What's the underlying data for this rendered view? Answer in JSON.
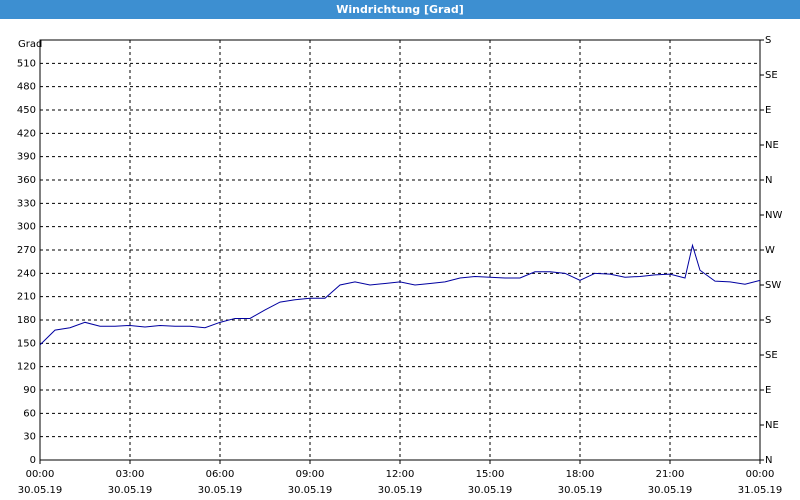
{
  "window_title": "Windrichtung [Grad]",
  "chart_data": {
    "type": "line",
    "y_label": "Grad",
    "x": [
      "2019-05-30 00:00",
      "2019-05-30 00:30",
      "2019-05-30 01:00",
      "2019-05-30 01:30",
      "2019-05-30 02:00",
      "2019-05-30 02:30",
      "2019-05-30 03:00",
      "2019-05-30 03:30",
      "2019-05-30 04:00",
      "2019-05-30 04:30",
      "2019-05-30 05:00",
      "2019-05-30 05:30",
      "2019-05-30 06:00",
      "2019-05-30 06:30",
      "2019-05-30 07:00",
      "2019-05-30 07:30",
      "2019-05-30 08:00",
      "2019-05-30 08:30",
      "2019-05-30 09:00",
      "2019-05-30 09:30",
      "2019-05-30 10:00",
      "2019-05-30 10:30",
      "2019-05-30 11:00",
      "2019-05-30 11:30",
      "2019-05-30 12:00",
      "2019-05-30 12:30",
      "2019-05-30 13:00",
      "2019-05-30 13:30",
      "2019-05-30 14:00",
      "2019-05-30 14:30",
      "2019-05-30 15:00",
      "2019-05-30 15:30",
      "2019-05-30 16:00",
      "2019-05-30 16:30",
      "2019-05-30 17:00",
      "2019-05-30 17:30",
      "2019-05-30 18:00",
      "2019-05-30 18:30",
      "2019-05-30 19:00",
      "2019-05-30 19:30",
      "2019-05-30 20:00",
      "2019-05-30 20:30",
      "2019-05-30 21:00",
      "2019-05-30 21:30",
      "2019-05-30 21:45",
      "2019-05-30 22:00",
      "2019-05-30 22:30",
      "2019-05-30 23:00",
      "2019-05-30 23:30",
      "2019-05-31 00:00"
    ],
    "series": [
      {
        "name": "Windrichtung",
        "color": "#0000a0",
        "values": [
          148,
          167,
          170,
          177,
          172,
          172,
          173,
          171,
          173,
          172,
          172,
          170,
          177,
          182,
          182,
          193,
          203,
          206,
          208,
          208,
          225,
          229,
          225,
          227,
          229,
          225,
          227,
          229,
          234,
          236,
          235,
          234,
          234,
          242,
          242,
          240,
          231,
          240,
          239,
          235,
          236,
          238,
          239,
          234,
          276,
          244,
          230,
          229,
          226,
          231
        ]
      }
    ],
    "xlim": [
      "2019-05-30 00:00",
      "2019-05-31 00:00"
    ],
    "xticks": [
      {
        "value": "2019-05-30 00:00",
        "label": [
          "00:00",
          "30.05.19"
        ]
      },
      {
        "value": "2019-05-30 03:00",
        "label": [
          "03:00",
          "30.05.19"
        ]
      },
      {
        "value": "2019-05-30 06:00",
        "label": [
          "06:00",
          "30.05.19"
        ]
      },
      {
        "value": "2019-05-30 09:00",
        "label": [
          "09:00",
          "30.05.19"
        ]
      },
      {
        "value": "2019-05-30 12:00",
        "label": [
          "12:00",
          "30.05.19"
        ]
      },
      {
        "value": "2019-05-30 15:00",
        "label": [
          "15:00",
          "30.05.19"
        ]
      },
      {
        "value": "2019-05-30 18:00",
        "label": [
          "18:00",
          "30.05.19"
        ]
      },
      {
        "value": "2019-05-30 21:00",
        "label": [
          "21:00",
          "30.05.19"
        ]
      },
      {
        "value": "2019-05-31 00:00",
        "label": [
          "00:00",
          "31.05.19"
        ]
      }
    ],
    "ylim": [
      0,
      540
    ],
    "yticks": [
      0,
      30,
      60,
      90,
      120,
      150,
      180,
      210,
      240,
      270,
      300,
      330,
      360,
      390,
      420,
      450,
      480,
      510
    ],
    "y2lim": [
      0,
      540
    ],
    "y2ticks": [
      {
        "value": 0,
        "label": "N"
      },
      {
        "value": 45,
        "label": "NE"
      },
      {
        "value": 90,
        "label": "E"
      },
      {
        "value": 135,
        "label": "SE"
      },
      {
        "value": 180,
        "label": "S"
      },
      {
        "value": 225,
        "label": "SW"
      },
      {
        "value": 270,
        "label": "W"
      },
      {
        "value": 315,
        "label": "NW"
      },
      {
        "value": 360,
        "label": "N"
      },
      {
        "value": 405,
        "label": "NE"
      },
      {
        "value": 450,
        "label": "E"
      },
      {
        "value": 495,
        "label": "SE"
      },
      {
        "value": 540,
        "label": "S"
      }
    ],
    "grid": true
  }
}
